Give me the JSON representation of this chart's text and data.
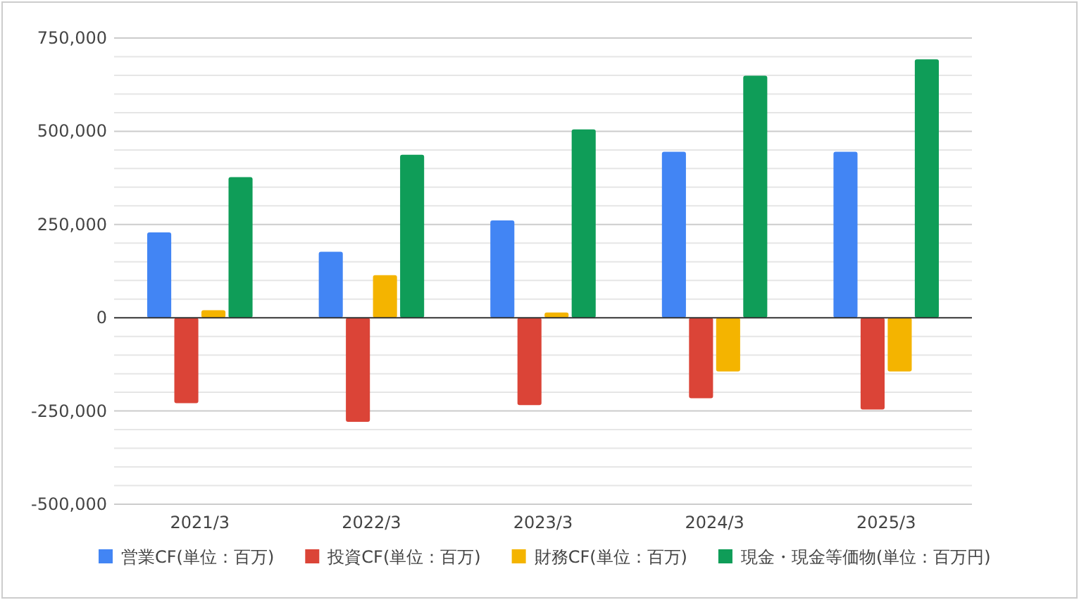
{
  "chart_data": {
    "type": "bar",
    "categories": [
      "2021/3",
      "2022/3",
      "2023/3",
      "2024/3",
      "2025/3"
    ],
    "series": [
      {
        "name": "営業CF(単位：百万)",
        "color": "#4285f4",
        "values": [
          229000,
          177000,
          261000,
          445000,
          445000
        ]
      },
      {
        "name": "投資CF(単位：百万)",
        "color": "#db4437",
        "values": [
          -229000,
          -279000,
          -234000,
          -216000,
          -246000
        ]
      },
      {
        "name": "財務CF(単位：百万)",
        "color": "#f4b400",
        "values": [
          20000,
          114000,
          14000,
          -144000,
          -144000
        ]
      },
      {
        "name": "現金・現金等価物(単位：百万円)",
        "color": "#0f9d58",
        "values": [
          377000,
          437000,
          505000,
          649000,
          693000
        ]
      }
    ],
    "ylim": [
      -500000,
      750000
    ],
    "yticks": [
      {
        "value": -500000,
        "label": "-500,000"
      },
      {
        "value": -450000,
        "label": null
      },
      {
        "value": -400000,
        "label": null
      },
      {
        "value": -350000,
        "label": null
      },
      {
        "value": -300000,
        "label": null
      },
      {
        "value": -250000,
        "label": "-250,000"
      },
      {
        "value": -200000,
        "label": null
      },
      {
        "value": -150000,
        "label": null
      },
      {
        "value": -100000,
        "label": null
      },
      {
        "value": -50000,
        "label": null
      },
      0,
      {
        "value": 50000,
        "label": null
      },
      {
        "value": 100000,
        "label": null
      },
      {
        "value": 150000,
        "label": null
      },
      {
        "value": 200000,
        "label": null
      },
      {
        "value": 250000,
        "label": "250,000"
      },
      {
        "value": 300000,
        "label": null
      },
      {
        "value": 350000,
        "label": null
      },
      {
        "value": 400000,
        "label": null
      },
      {
        "value": 450000,
        "label": null
      },
      {
        "value": 500000,
        "label": "500,000"
      },
      {
        "value": 550000,
        "label": null
      },
      {
        "value": 600000,
        "label": null
      },
      {
        "value": 650000,
        "label": null
      },
      {
        "value": 700000,
        "label": null
      },
      {
        "value": 750000,
        "label": "750,000"
      }
    ],
    "grid": "y",
    "legend": "bottom"
  }
}
